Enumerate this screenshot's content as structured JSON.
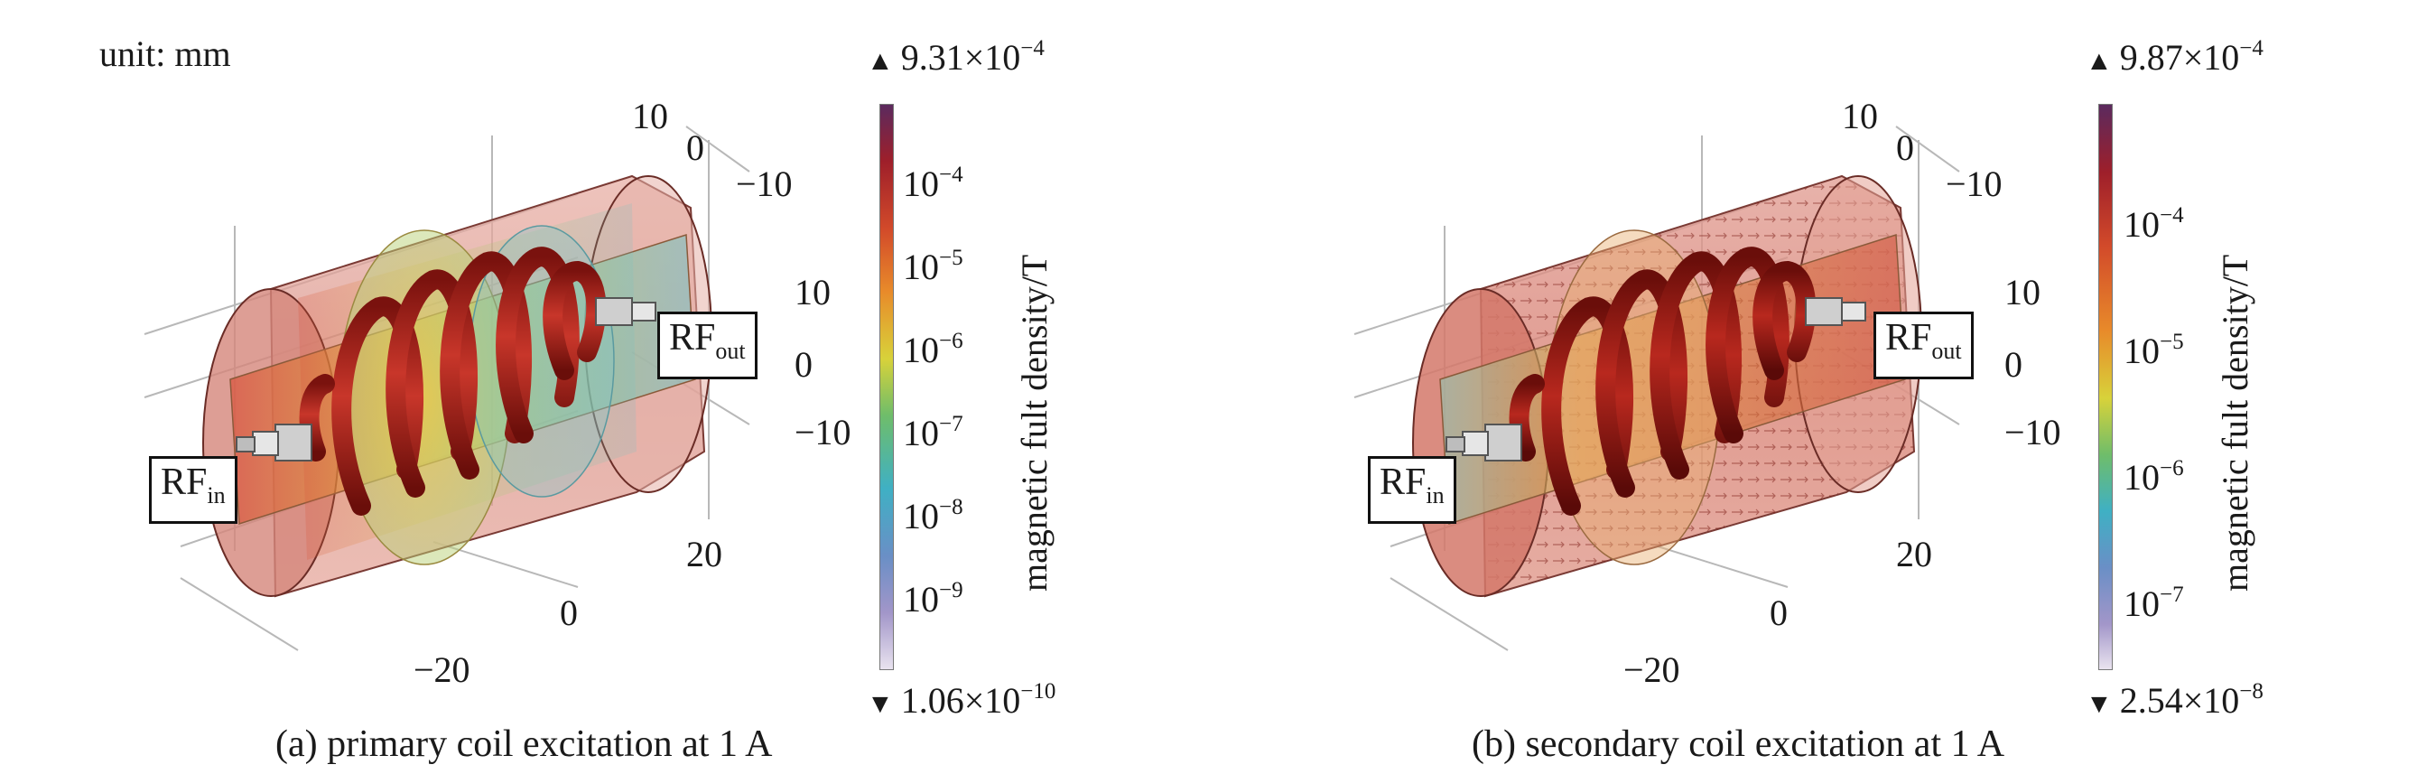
{
  "unit_label": "unit: mm",
  "colors": {
    "cb_top": "#5b2a5e",
    "cb_upper": "#9e1f2a",
    "cb_mid_red": "#d24a2a",
    "cb_orange": "#e88a2a",
    "cb_yellow": "#d8d23a",
    "cb_green": "#6fbd6a",
    "cb_cyan": "#3fb0c4",
    "cb_blue": "#6a8fc6",
    "cb_violet": "#a296c9",
    "cb_bottom": "#e9e3ef",
    "housing": "#d98f85",
    "coil": "#a8241c"
  },
  "panels": [
    {
      "caption": "(a) primary coil excitation at 1 A",
      "colorbar": {
        "max": {
          "mantissa": "9.31×10",
          "exp": "−4"
        },
        "min": {
          "mantissa": "1.06×10",
          "exp": "−10"
        },
        "ticks": [
          {
            "base": "10",
            "exp": "−4"
          },
          {
            "base": "10",
            "exp": "−5"
          },
          {
            "base": "10",
            "exp": "−6"
          },
          {
            "base": "10",
            "exp": "−7"
          },
          {
            "base": "10",
            "exp": "−8"
          },
          {
            "base": "10",
            "exp": "−9"
          }
        ],
        "title": "magnetic fult density/T"
      },
      "axis_ticks": [
        "10",
        "0",
        "−10",
        "10",
        "0",
        "−10",
        "20",
        "0",
        "−20"
      ],
      "rf_in": {
        "main": "RF",
        "sub": "in"
      },
      "rf_out": {
        "main": "RF",
        "sub": "out"
      }
    },
    {
      "caption": "(b) secondary coil excitation at 1 A",
      "colorbar": {
        "max": {
          "mantissa": "9.87×10",
          "exp": "−4"
        },
        "min": {
          "mantissa": "2.54×10",
          "exp": "−8"
        },
        "ticks": [
          {
            "base": "10",
            "exp": "−4"
          },
          {
            "base": "10",
            "exp": "−5"
          },
          {
            "base": "10",
            "exp": "−6"
          },
          {
            "base": "10",
            "exp": "−7"
          }
        ],
        "title": "magnetic fult density/T"
      },
      "axis_ticks": [
        "10",
        "0",
        "−10",
        "10",
        "0",
        "−10",
        "20",
        "0",
        "−20"
      ],
      "rf_in": {
        "main": "RF",
        "sub": "in"
      },
      "rf_out": {
        "main": "RF",
        "sub": "out"
      }
    }
  ]
}
